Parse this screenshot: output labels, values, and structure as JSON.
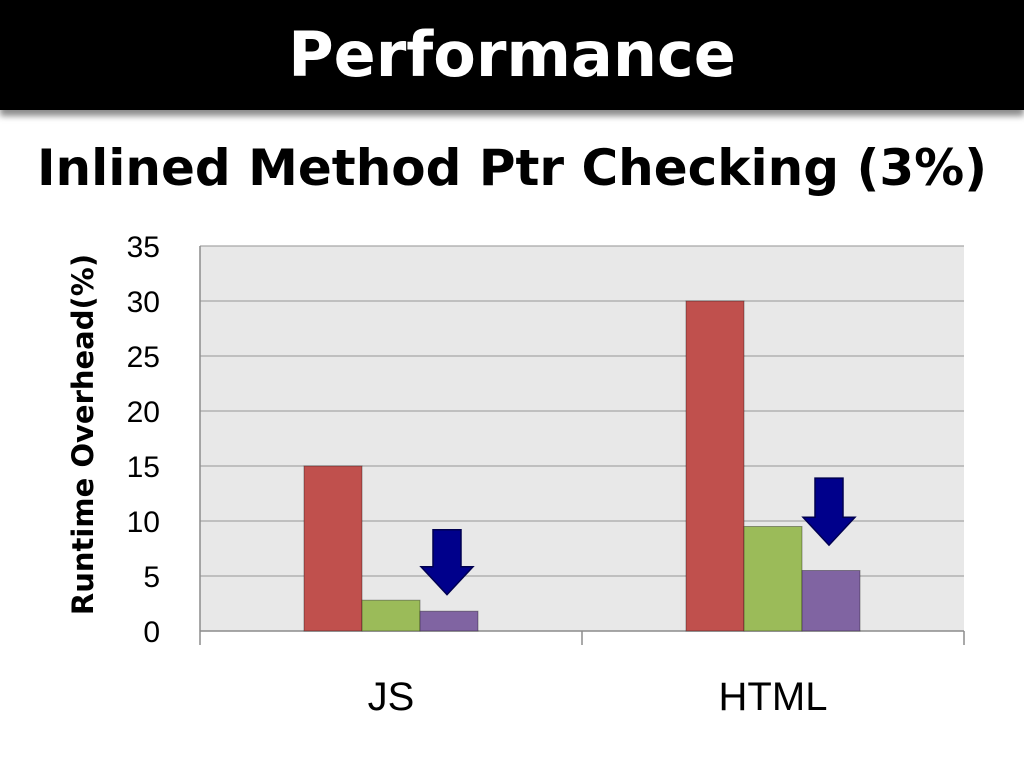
{
  "header": {
    "title": "Performance"
  },
  "subtitle": "Inlined Method Ptr Checking (3%)",
  "colors": {
    "header_bg": "#000000",
    "plot_bg": "#e8e8e8",
    "series": [
      "#c0504d",
      "#9bbb59",
      "#8064a2"
    ],
    "arrow": "#00008b"
  },
  "arrows": [
    {
      "category": "JS",
      "icon": "down-arrow-icon",
      "top_value": 9.2,
      "bottom_value": 3.3
    },
    {
      "category": "HTML",
      "icon": "down-arrow-icon",
      "top_value": 13.9,
      "bottom_value": 7.8
    }
  ],
  "chart_data": {
    "type": "bar",
    "title": "Inlined Method Ptr Checking (3%)",
    "xlabel": "",
    "ylabel": "Runtime Overhead(%)",
    "ylim": [
      0,
      35
    ],
    "yticks": [
      0,
      5,
      10,
      15,
      20,
      25,
      30,
      35
    ],
    "grid": true,
    "legend": "none",
    "categories": [
      "JS",
      "HTML"
    ],
    "series": [
      {
        "values": [
          15,
          30
        ]
      },
      {
        "values": [
          2.8,
          9.5
        ]
      },
      {
        "values": [
          1.8,
          5.5
        ]
      }
    ]
  }
}
